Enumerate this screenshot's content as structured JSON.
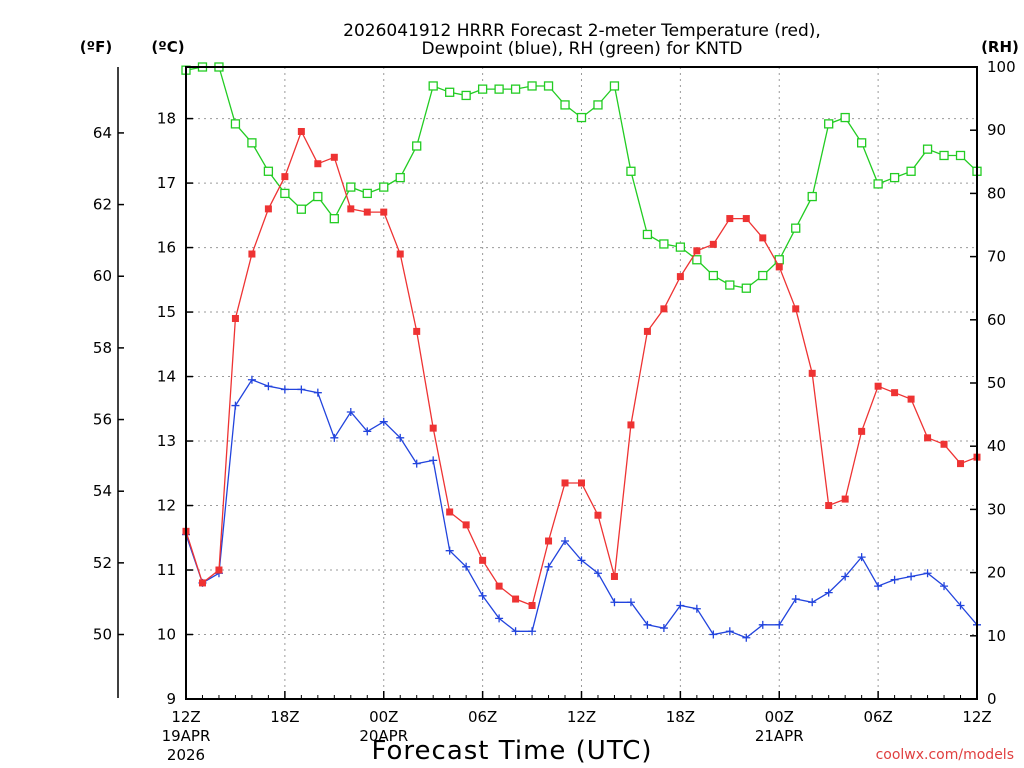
{
  "chart_data": {
    "type": "line",
    "title_line1": "2026041912 HRRR Forecast 2-meter Temperature (red),",
    "title_line2": "Dewpoint (blue), RH (green) for KNTD",
    "xlabel": "Forecast Time (UTC)",
    "credit": "coolwx.com/models",
    "unit_f": "(ºF)",
    "unit_c": "(ºC)",
    "unit_rh": "(RH)",
    "x_hours": [
      0,
      1,
      2,
      3,
      4,
      5,
      6,
      7,
      8,
      9,
      10,
      11,
      12,
      13,
      14,
      15,
      16,
      17,
      18,
      19,
      20,
      21,
      22,
      23,
      24,
      25,
      26,
      27,
      28,
      29,
      30,
      31,
      32,
      33,
      34,
      35,
      36,
      37,
      38,
      39,
      40,
      41,
      42,
      43,
      44,
      45,
      46,
      47,
      48
    ],
    "xlim": [
      0,
      48
    ],
    "x_ticks": [
      {
        "hour": 0,
        "label": "12Z",
        "sub1": "19APR",
        "sub2": "2026"
      },
      {
        "hour": 6,
        "label": "18Z",
        "sub1": "",
        "sub2": ""
      },
      {
        "hour": 12,
        "label": "00Z",
        "sub1": "20APR",
        "sub2": ""
      },
      {
        "hour": 18,
        "label": "06Z",
        "sub1": "",
        "sub2": ""
      },
      {
        "hour": 24,
        "label": "12Z",
        "sub1": "",
        "sub2": ""
      },
      {
        "hour": 30,
        "label": "18Z",
        "sub1": "",
        "sub2": ""
      },
      {
        "hour": 36,
        "label": "00Z",
        "sub1": "21APR",
        "sub2": ""
      },
      {
        "hour": 42,
        "label": "06Z",
        "sub1": "",
        "sub2": ""
      },
      {
        "hour": 48,
        "label": "12Z",
        "sub1": "",
        "sub2": ""
      }
    ],
    "ylim_c": [
      9,
      18.8
    ],
    "y_ticks_c": [
      "9",
      "10",
      "11",
      "12",
      "13",
      "14",
      "15",
      "16",
      "17",
      "18"
    ],
    "y_ticks_f": [
      "50",
      "52",
      "54",
      "56",
      "58",
      "60",
      "62",
      "64"
    ],
    "y_ticks_rh": [
      "0",
      "10",
      "20",
      "30",
      "40",
      "50",
      "60",
      "70",
      "80",
      "90",
      "100"
    ],
    "ylim_rh": [
      0,
      100
    ],
    "series": [
      {
        "name": "2-meter Temperature",
        "unit": "C",
        "color": "#ee3333",
        "marker": "square-filled",
        "values": [
          11.6,
          10.8,
          11.0,
          14.9,
          15.9,
          16.6,
          17.1,
          17.8,
          17.3,
          17.4,
          16.6,
          16.55,
          16.55,
          15.9,
          14.7,
          13.2,
          11.9,
          11.7,
          11.15,
          10.75,
          10.55,
          10.45,
          11.45,
          12.35,
          12.35,
          11.85,
          10.9,
          13.25,
          14.7,
          15.05,
          15.55,
          15.95,
          16.05,
          16.45,
          16.45,
          16.15,
          15.7,
          15.05,
          14.05,
          12.0,
          12.1,
          13.15,
          13.85,
          13.75,
          13.65,
          13.05,
          12.95,
          12.65,
          12.75
        ]
      },
      {
        "name": "Dewpoint",
        "unit": "C",
        "color": "#2244dd",
        "marker": "plus",
        "values": [
          11.55,
          10.8,
          10.95,
          13.55,
          13.95,
          13.85,
          13.8,
          13.8,
          13.75,
          13.05,
          13.45,
          13.15,
          13.3,
          13.05,
          12.65,
          12.7,
          11.3,
          11.05,
          10.6,
          10.25,
          10.05,
          10.05,
          11.05,
          11.45,
          11.15,
          10.95,
          10.5,
          10.5,
          10.15,
          10.1,
          10.45,
          10.4,
          10.0,
          10.05,
          9.95,
          10.15,
          10.15,
          10.55,
          10.5,
          10.65,
          10.9,
          11.2,
          10.75,
          10.85,
          10.9,
          10.95,
          10.75,
          10.45,
          10.15
        ]
      },
      {
        "name": "RH",
        "unit": "%",
        "color": "#22cc22",
        "marker": "square-open",
        "values": [
          99.5,
          100,
          100,
          91,
          88,
          83.5,
          80,
          77.5,
          79.5,
          76,
          81,
          80,
          81,
          82.5,
          87.5,
          97,
          96,
          95.5,
          96.5,
          96.5,
          96.5,
          97,
          97,
          94,
          92,
          94,
          97,
          83.5,
          73.5,
          72,
          71.5,
          69.5,
          67,
          65.5,
          65,
          67,
          69.5,
          74.5,
          79.5,
          91,
          92,
          88,
          81.5,
          82.5,
          83.5,
          87,
          86,
          86,
          83.5
        ]
      }
    ]
  }
}
